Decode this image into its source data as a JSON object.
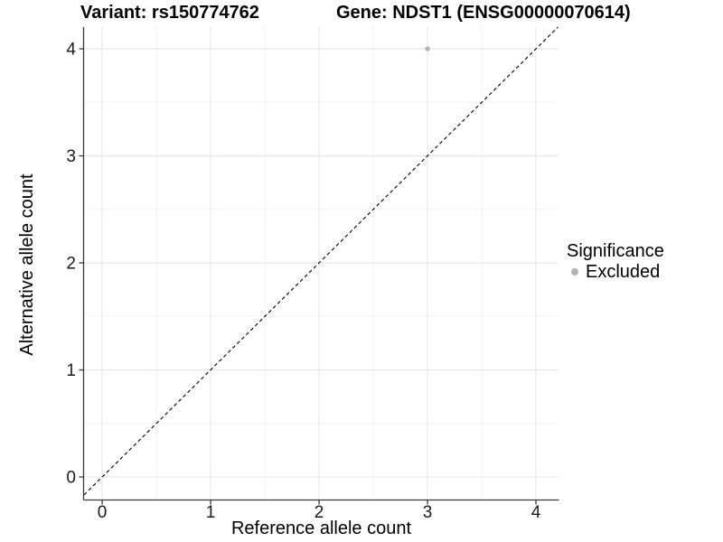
{
  "figure": {
    "title_variant": "Variant: rs150774762",
    "title_gene": "Gene: NDST1 (ENSG00000070614)"
  },
  "axes": {
    "x_label": "Reference allele count",
    "y_label": "Alternative allele count"
  },
  "legend": {
    "title": "Significance",
    "items": [
      {
        "label": "Excluded",
        "color": "#b4b4b4"
      }
    ]
  },
  "chart_data": {
    "type": "scatter",
    "titles": [
      "Variant: rs150774762",
      "Gene: NDST1 (ENSG00000070614)"
    ],
    "xlabel": "Reference allele count",
    "ylabel": "Alternative allele count",
    "xticks": [
      0,
      1,
      2,
      3,
      4
    ],
    "yticks": [
      0,
      1,
      2,
      3,
      4
    ],
    "xlim": [
      -0.167,
      4.208
    ],
    "ylim": [
      -0.211,
      4.203
    ],
    "grid": {
      "major": true,
      "minor": true
    },
    "series": [
      {
        "name": "Excluded",
        "color": "#b9b9b9",
        "points": [
          {
            "x": 3,
            "y": 4
          }
        ]
      }
    ],
    "reference_line": {
      "kind": "identity",
      "dashed": true,
      "color": "#000000"
    },
    "legend": {
      "title": "Significance",
      "position": "right"
    },
    "colors": {
      "background": "#ffffff",
      "grid_major": "#e4e4e4",
      "grid_minor": "#f0f0f0",
      "axis": "#3a3a3a",
      "tick_text": "#1a1a1a"
    }
  }
}
